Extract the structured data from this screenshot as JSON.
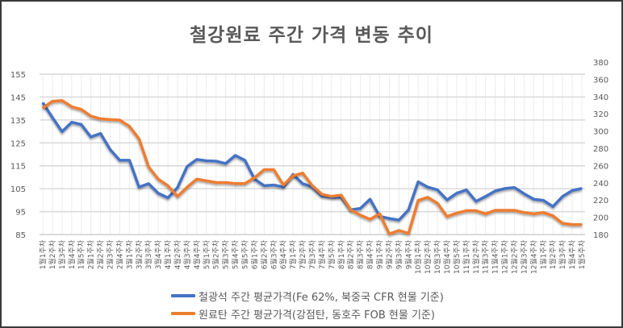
{
  "chart_data": {
    "type": "line",
    "title": "철강원료 주간 가격 변동 추이",
    "categories": [
      "1월1주차",
      "1월2주차",
      "1월3주차",
      "1월4주차",
      "1월5주차",
      "2월1주차",
      "2월2주차",
      "2월3주차",
      "2월4주차",
      "3월1주차",
      "3월2주차",
      "3월3주차",
      "3월4주차",
      "4월1주차",
      "4월2주차",
      "4월3주차",
      "4월4주차",
      "5월1주차",
      "5월2주차",
      "5월3주차",
      "5월4주차",
      "5월5주차",
      "6월1주차",
      "6월2주차",
      "6월3주차",
      "6월4주차",
      "7월1주차",
      "7월2주차",
      "7월3주차",
      "7월4주차",
      "7월5주차",
      "8월1주차",
      "8월2주차",
      "8월3주차",
      "8월4주차",
      "9월1주차",
      "9월2주차",
      "9월3주차",
      "9월4주차",
      "10월1주차",
      "10월2주차",
      "10월3주차",
      "10월4주차",
      "10월5주차",
      "11월1주차",
      "11월2주차",
      "11월3주차",
      "11월4주차",
      "12월1주차",
      "12월2주차",
      "12월3주차",
      "12월4주차",
      "1월1주차",
      "1월2주차",
      "1월3주차",
      "1월4주차",
      "1월5주차"
    ],
    "left_axis": {
      "ylim": [
        85,
        155
      ],
      "ticks": [
        85,
        95,
        105,
        115,
        125,
        135,
        145,
        155
      ]
    },
    "right_axis": {
      "ylim": [
        180,
        380
      ],
      "ticks": [
        180,
        200,
        220,
        240,
        260,
        280,
        300,
        320,
        340,
        360,
        380
      ]
    },
    "grid": true,
    "legend_position": "bottom",
    "series": [
      {
        "name": "철광석 주간 평균가격(Fe 62%, 북중국 CFR 현물 기준)",
        "axis": "left",
        "color": "#4472C4",
        "values": [
          142.5,
          136.1,
          129.9,
          134,
          133,
          127.6,
          129.1,
          122.1,
          117.4,
          117.4,
          105.7,
          107.2,
          103,
          101,
          105.5,
          114.7,
          117.8,
          117.2,
          117,
          116,
          119.5,
          117.4,
          109.2,
          106.3,
          106.6,
          105.7,
          111.2,
          107.2,
          105.7,
          101.8,
          101.3,
          101.3,
          95.8,
          96.4,
          100.4,
          92.9,
          92,
          91.3,
          95.8,
          108,
          105.7,
          104.5,
          100.1,
          103,
          104.5,
          99.5,
          101.6,
          104,
          105.1,
          105.5,
          102.8,
          100.4,
          99.9,
          97.2,
          101.6,
          104.2,
          105.1
        ]
      },
      {
        "name": "원료탄 주간 평균가격(강점탄, 동호주 FOB 현물 기준)",
        "axis": "right",
        "color": "#ED7D31",
        "values": [
          326.7,
          334.4,
          335.4,
          328.2,
          325.1,
          317.4,
          314.2,
          313.3,
          312.7,
          305.5,
          290.9,
          258.3,
          244.3,
          236.6,
          224.2,
          235,
          244.3,
          242.2,
          240.3,
          240.3,
          239.1,
          239.1,
          245.9,
          255.2,
          255.2,
          237.5,
          248,
          251.2,
          236.6,
          226.6,
          224.2,
          225.7,
          208.6,
          202.4,
          197.7,
          204,
          180.7,
          184.7,
          181.3,
          219.5,
          223.2,
          216.3,
          200.9,
          204.9,
          207.7,
          207.7,
          204,
          208,
          208,
          208,
          205.5,
          204,
          205.5,
          201.8,
          193,
          191.6,
          191.6
        ]
      }
    ]
  }
}
